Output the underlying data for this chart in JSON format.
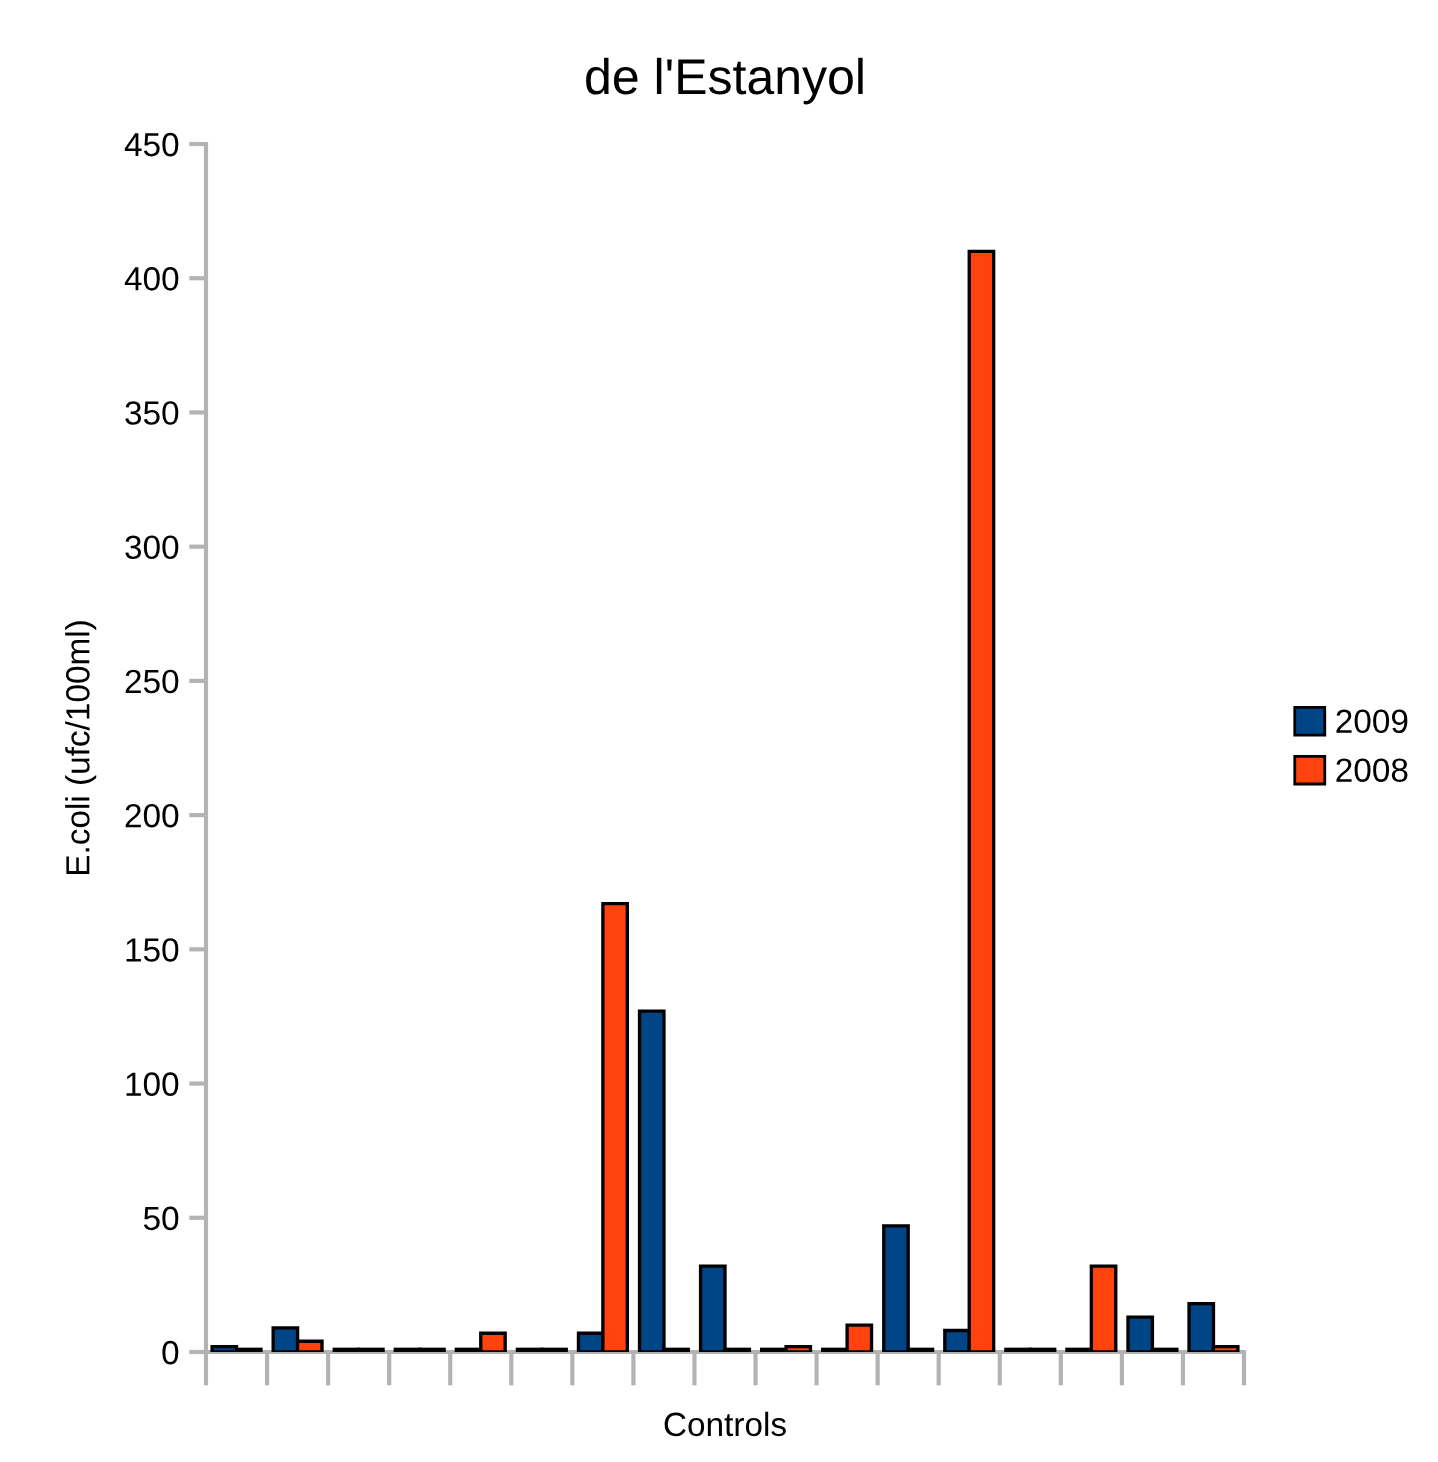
{
  "chart_data": {
    "type": "bar",
    "title": "de l'Estanyol",
    "xlabel": "Controls",
    "ylabel": "E.coli (ufc/100ml)",
    "categories": [
      null,
      null,
      null,
      null,
      null,
      null,
      null,
      null,
      null,
      null,
      null,
      null,
      null,
      null,
      null,
      null,
      null
    ],
    "series": [
      {
        "name": "2009",
        "color": "#004586",
        "values": [
          2,
          9,
          1,
          1,
          1,
          1,
          7,
          127,
          32,
          1,
          1,
          47,
          8,
          1,
          1,
          13,
          18
        ]
      },
      {
        "name": "2008",
        "color": "#ff420e",
        "values": [
          1,
          4,
          1,
          1,
          7,
          1,
          167,
          1,
          1,
          2,
          10,
          1,
          410,
          1,
          32,
          1,
          2
        ]
      }
    ],
    "ylim": [
      0,
      450
    ],
    "yticks": [
      0,
      50,
      100,
      150,
      200,
      250,
      300,
      350,
      400,
      450
    ],
    "grid": false,
    "legend": "right"
  }
}
